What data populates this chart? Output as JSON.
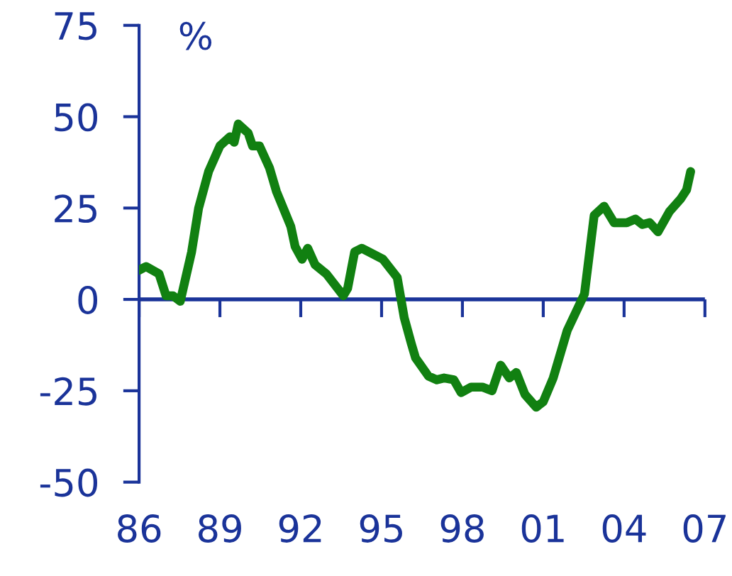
{
  "chart_data": {
    "type": "line",
    "ylabel": "%",
    "x": [
      1986.0,
      1986.26,
      1986.74,
      1987.0,
      1987.26,
      1987.53,
      1987.95,
      1988.21,
      1988.58,
      1989.0,
      1989.37,
      1989.53,
      1989.68,
      1990.05,
      1990.21,
      1990.47,
      1990.84,
      1991.1,
      1991.63,
      1991.79,
      1992.05,
      1992.26,
      1992.53,
      1992.95,
      1993.58,
      1993.74,
      1994.0,
      1994.26,
      1994.53,
      1995.05,
      1995.58,
      1995.84,
      1996.1,
      1996.26,
      1996.74,
      1997.05,
      1997.32,
      1997.68,
      1997.95,
      1998.32,
      1998.74,
      1999.1,
      1999.42,
      1999.74,
      2000.0,
      2000.32,
      2000.74,
      2001.0,
      2001.37,
      2001.89,
      2002.53,
      2002.89,
      2003.26,
      2003.63,
      2004.1,
      2004.42,
      2004.68,
      2004.95,
      2005.26,
      2005.68,
      2006.1,
      2006.32,
      2006.47
    ],
    "series": [
      {
        "color": "#118011",
        "values": [
          8,
          9,
          7,
          1,
          1,
          -0.5,
          13,
          25,
          35,
          42,
          44.5,
          43,
          48,
          45.5,
          42,
          42,
          36,
          29.5,
          20,
          14.5,
          11,
          14,
          9.5,
          7,
          1,
          3,
          13,
          14,
          13,
          11,
          6,
          -5,
          -12,
          -16,
          -21,
          -22,
          -21.5,
          -22,
          -25.5,
          -24,
          -24,
          -25,
          -18,
          -21.5,
          -20,
          -26,
          -29.5,
          -28,
          -21.5,
          -8.5,
          1.5,
          23,
          25.5,
          21,
          21,
          22,
          20.5,
          21,
          18.5,
          24,
          27.5,
          30,
          35
        ]
      }
    ],
    "xlim": [
      1986,
      2007
    ],
    "xticks": [
      {
        "value": 1986,
        "label": "86"
      },
      {
        "value": 1989,
        "label": "89"
      },
      {
        "value": 1992,
        "label": "92"
      },
      {
        "value": 1995,
        "label": "95"
      },
      {
        "value": 1998,
        "label": "98"
      },
      {
        "value": 2001,
        "label": "01"
      },
      {
        "value": 2004,
        "label": "04"
      },
      {
        "value": 2007,
        "label": "07"
      }
    ],
    "ylim": [
      -50,
      75
    ],
    "yticks": [
      -50,
      -25,
      0,
      25,
      50,
      75
    ],
    "ref_lines": [
      {
        "axis": "y",
        "value": 0,
        "color": "#1a3399"
      }
    ],
    "marker": "none",
    "line_style": "solid"
  }
}
